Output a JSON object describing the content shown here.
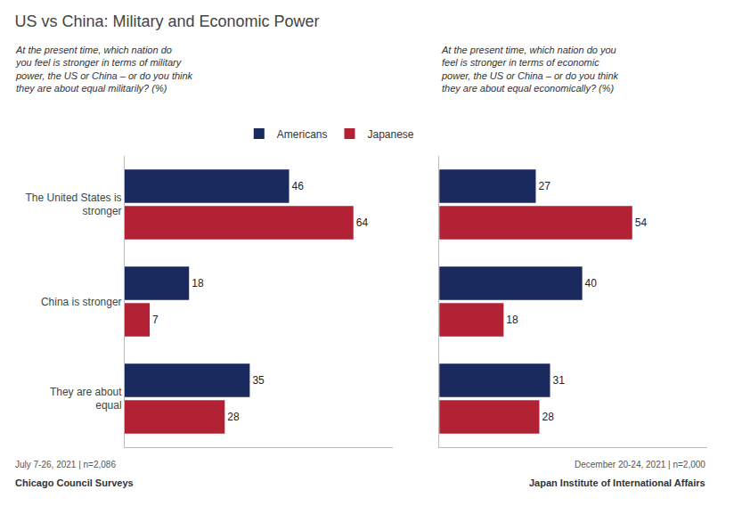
{
  "chart_data": [
    {
      "type": "bar",
      "title": "US vs China: Military and Economic Power",
      "subtitle": "At the present time, which nation do\nyou feel is stronger in terms of military\npower, the US or China – or do you think\nthey are about equal militarily? (%)",
      "orientation": "horizontal",
      "categories": [
        "The United States is\nstronger",
        "China is stronger",
        "They are about\nequal"
      ],
      "series": [
        {
          "name": "Americans",
          "color": "#1a2a5e",
          "values": [
            46,
            18,
            35
          ]
        },
        {
          "name": "Japanese",
          "color": "#b22234",
          "values": [
            64,
            7,
            28
          ]
        }
      ],
      "xlim": [
        0,
        75
      ],
      "data_labels": true,
      "grid": false,
      "legend": "top",
      "tick_labels": "y",
      "annotations": [
        "July 7-26, 2021 | n=2,086",
        "Chicago Council Surveys"
      ]
    },
    {
      "type": "bar",
      "subtitle": "At the present time, which nation do you\nfeel is stronger in terms of economic\npower, the US or China – or do you think\nthey are about equal economically? (%)",
      "orientation": "horizontal",
      "categories": [
        "The United States is\nstronger",
        "China is stronger",
        "They are about\nequal"
      ],
      "series": [
        {
          "name": "Americans",
          "color": "#1a2a5e",
          "values": [
            27,
            40,
            31
          ]
        },
        {
          "name": "Japanese",
          "color": "#b22234",
          "values": [
            54,
            18,
            28
          ]
        }
      ],
      "xlim": [
        0,
        75
      ],
      "data_labels": true,
      "grid": false,
      "tick_labels": false,
      "annotations": [
        "December 20-24, 2021 | n=2,000",
        "Japan Institute of International Affairs"
      ]
    }
  ]
}
